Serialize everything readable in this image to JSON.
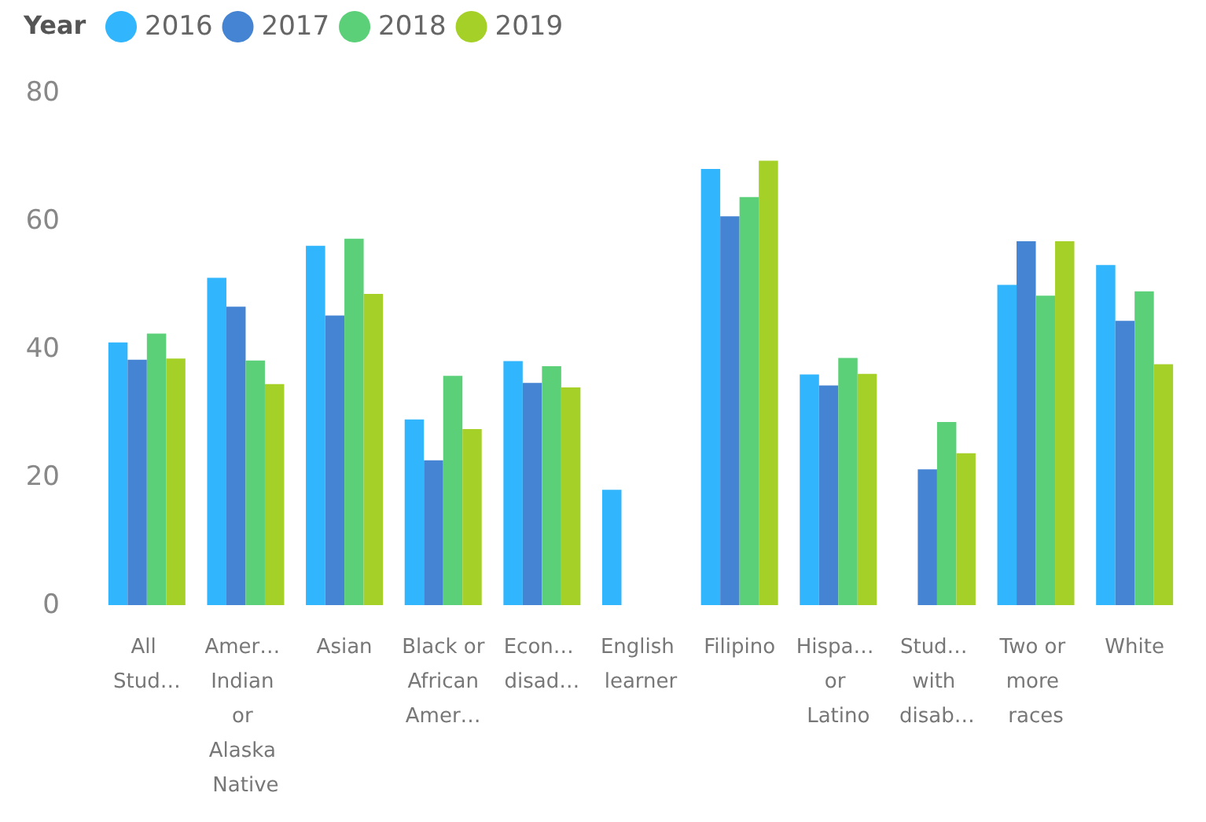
{
  "chart_data": {
    "type": "bar",
    "legend_title": "Year",
    "legend": "top left",
    "grid": false,
    "categories": [
      "All Stud…",
      "Amer… Indian or Alaska Native",
      "Asian",
      "Black or African Amer…",
      "Econ… disad…",
      "English learner",
      "Filipino",
      "Hispa… or Latino",
      "Stud… with disab…",
      "Two or more races",
      "White"
    ],
    "series": [
      {
        "name": "2016",
        "color": "#31b6fd",
        "values": [
          41.0,
          51.1,
          56.1,
          29.0,
          38.1,
          18.0,
          68.1,
          36.0,
          null,
          50.0,
          53.1
        ]
      },
      {
        "name": "2017",
        "color": "#4584d3",
        "values": [
          38.3,
          46.6,
          45.2,
          22.6,
          34.7,
          null,
          60.7,
          34.3,
          21.2,
          56.8,
          44.4
        ]
      },
      {
        "name": "2018",
        "color": "#5bd078",
        "values": [
          42.4,
          38.2,
          57.2,
          35.8,
          37.3,
          null,
          63.7,
          38.6,
          28.6,
          48.3,
          49.0
        ]
      },
      {
        "name": "2019",
        "color": "#a5d028",
        "values": [
          38.5,
          34.5,
          48.6,
          27.5,
          34.0,
          null,
          69.4,
          36.1,
          23.7,
          56.8,
          37.6
        ]
      }
    ],
    "ylim": [
      0,
      80
    ],
    "yticks": [
      0,
      20,
      40,
      60,
      80
    ]
  }
}
